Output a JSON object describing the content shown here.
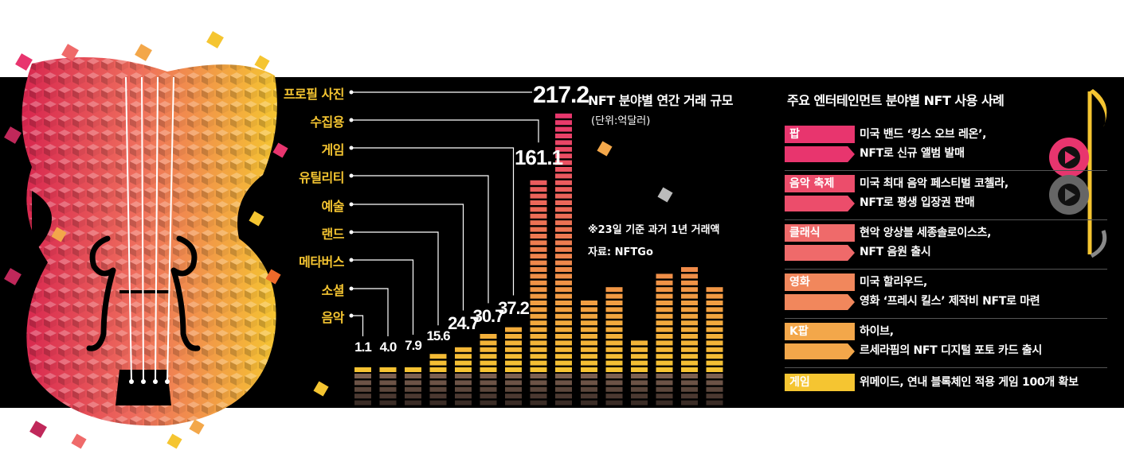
{
  "colors": {
    "label_yellow": "#f5c531",
    "bar_top": "#e8356e",
    "bar_bottom": "#f5c531",
    "bar_shadow": "#8a6a5a",
    "background": "#000000"
  },
  "chart_data": {
    "type": "bar",
    "title": "NFT 분야별 연간 거래 규모",
    "unit": "(단위:억달러)",
    "note": "※23일 기준 과거 1년 거래액",
    "source": "자료: NFTGo",
    "categories": [
      "음악",
      "소셜",
      "메타버스",
      "랜드",
      "예술",
      "유틸리티",
      "게임",
      "수집용",
      "프로필 사진"
    ],
    "values": [
      1.1,
      4.0,
      7.9,
      15.6,
      24.7,
      30.7,
      37.2,
      161.1,
      217.2
    ],
    "value_labels": [
      "1.1",
      "4.0",
      "7.9",
      "15.6",
      "24.7",
      "30.7",
      "37.2",
      "161.1",
      "217.2"
    ]
  },
  "right_panel": {
    "title": "주요 엔터테인먼트 분야별 NFT 사용 사례",
    "cases": [
      {
        "label": "팝",
        "line1": "미국 밴드 ‘킹스 오브 레온’,",
        "line2": "NFT로 신규 앨범 발매",
        "color": "#e8356e"
      },
      {
        "label": "음악 축제",
        "line1": "미국 최대 음악 페스티벌 코첼라,",
        "line2": "NFT로 평생 입장권 판매",
        "color": "#ec4d6b"
      },
      {
        "label": "클래식",
        "line1": "현악 앙상블 세종솔로이스츠,",
        "line2": "NFT 음원 출시",
        "color": "#ef6a6a"
      },
      {
        "label": "영화",
        "line1": "미국 할리우드,",
        "line2": "영화 ‘프레시 킬스’ 제작비 NFT로 마련",
        "color": "#f1875c"
      },
      {
        "label": "K팝",
        "line1": "하이브,",
        "line2": "르세라핌의 NFT 디지털 포토 카드 출시",
        "color": "#f3a74a"
      },
      {
        "label": "게임",
        "line1": "위메이드, 연내 블록체인 적용 게임 100개 확보",
        "line2": "",
        "color": "#f5c531"
      }
    ]
  }
}
